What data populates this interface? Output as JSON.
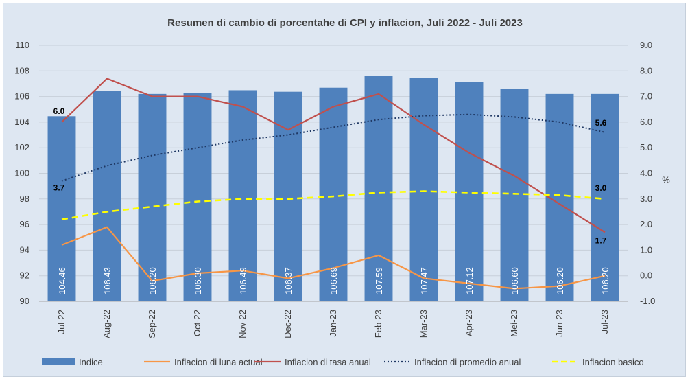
{
  "chart_data": {
    "type": "bar",
    "title": "Resumen di cambio di porcentahe di CPI y inflacion, Juli 2022 - Juli 2023",
    "categories": [
      "Jul-22",
      "Aug-22",
      "Sep-22",
      "Oct-22",
      "Nov-22",
      "Dec-22",
      "Jan-23",
      "Feb-23",
      "Mar-23",
      "Apr-23",
      "Mei-23",
      "Jun-23",
      "Jul-23"
    ],
    "y_left": {
      "ylim": [
        90,
        110
      ],
      "ticks": [
        90,
        92,
        94,
        96,
        98,
        100,
        102,
        104,
        106,
        108,
        110
      ]
    },
    "y_right": {
      "label": "%",
      "ylim": [
        -1.0,
        9.0
      ],
      "ticks": [
        "-1.0",
        "0.0",
        "1.0",
        "2.0",
        "3.0",
        "4.0",
        "5.0",
        "6.0",
        "7.0",
        "8.0",
        "9.0"
      ]
    },
    "grid": true,
    "legend_position": "bottom",
    "series": [
      {
        "name": "Indice",
        "type": "bar",
        "axis": "left",
        "color": "#4f81bd",
        "values": [
          104.46,
          106.43,
          106.2,
          106.3,
          106.49,
          106.37,
          106.69,
          107.59,
          107.47,
          107.12,
          106.6,
          106.2,
          106.2
        ],
        "labels": [
          "104.46",
          "106.43",
          "106.20",
          "106.30",
          "106.49",
          "106.37",
          "106.69",
          "107.59",
          "107.47",
          "107.12",
          "106.60",
          "106.20",
          "106.20"
        ]
      },
      {
        "name": "Inflacion di luna actual",
        "type": "line",
        "axis": "right",
        "color": "#f79646",
        "dash": "solid",
        "values": [
          1.2,
          1.9,
          -0.2,
          0.1,
          0.2,
          -0.1,
          0.3,
          0.8,
          -0.1,
          -0.3,
          -0.5,
          -0.4,
          0.0
        ]
      },
      {
        "name": "Inflacion di tasa anual",
        "type": "line",
        "axis": "right",
        "color": "#c0504d",
        "dash": "solid",
        "values": [
          6.0,
          7.7,
          7.0,
          7.0,
          6.6,
          5.7,
          6.6,
          7.1,
          5.9,
          4.8,
          3.9,
          2.8,
          1.7
        ]
      },
      {
        "name": "Inflacion di promedio anual",
        "type": "line",
        "axis": "right",
        "color": "#1f3864",
        "dash": "dotted",
        "values": [
          3.7,
          4.3,
          4.7,
          5.0,
          5.3,
          5.5,
          5.8,
          6.1,
          6.25,
          6.3,
          6.2,
          6.0,
          5.6
        ]
      },
      {
        "name": "Inflacion basico",
        "type": "line",
        "axis": "right",
        "color": "#ffff00",
        "dash": "dashed",
        "values": [
          2.2,
          2.5,
          2.7,
          2.9,
          3.0,
          3.0,
          3.1,
          3.25,
          3.3,
          3.25,
          3.2,
          3.15,
          3.0
        ]
      }
    ],
    "annotations": [
      {
        "series": 2,
        "index": 0,
        "text": "6.0"
      },
      {
        "series": 3,
        "index": 0,
        "text": "3.7"
      },
      {
        "series": 3,
        "index": 12,
        "text": "5.6"
      },
      {
        "series": 4,
        "index": 12,
        "text": "3.0"
      },
      {
        "series": 2,
        "index": 12,
        "text": "1.7"
      }
    ]
  }
}
